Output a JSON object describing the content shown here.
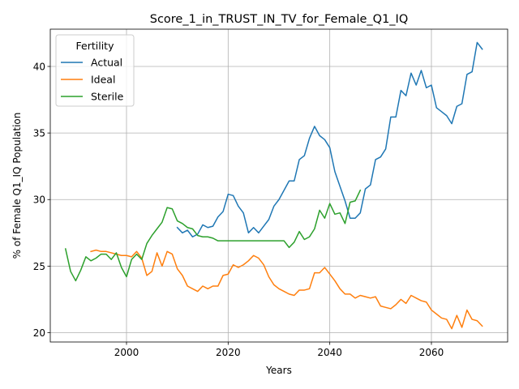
{
  "chart_data": {
    "type": "line",
    "title": "Score_1_in_TRUST_IN_TV_for_Female_Q1_IQ",
    "xlabel": "Years",
    "ylabel": "% of Female Q1_IQ Population",
    "xlim": [
      1985,
      2075
    ],
    "ylim": [
      19.3,
      42.8
    ],
    "xticks": [
      2000,
      2020,
      2040,
      2060
    ],
    "yticks": [
      20,
      25,
      30,
      35,
      40
    ],
    "grid": true,
    "legend": {
      "title": "Fertility",
      "placement": "top-left"
    },
    "series": [
      {
        "name": "Actual",
        "color": "#1f77b4",
        "x": [
          2010,
          2011,
          2012,
          2013,
          2014,
          2015,
          2016,
          2017,
          2018,
          2019,
          2020,
          2021,
          2022,
          2023,
          2024,
          2025,
          2026,
          2027,
          2028,
          2029,
          2030,
          2031,
          2032,
          2033,
          2034,
          2035,
          2036,
          2037,
          2038,
          2039,
          2040,
          2041,
          2042,
          2043,
          2044,
          2045,
          2046,
          2047,
          2048,
          2049,
          2050,
          2051,
          2052,
          2053,
          2054,
          2055,
          2056,
          2057,
          2058,
          2059,
          2060,
          2061,
          2062,
          2063,
          2064,
          2065,
          2066,
          2067,
          2068,
          2069,
          2070
        ],
        "y": [
          27.9,
          27.5,
          27.7,
          27.2,
          27.4,
          28.1,
          27.9,
          28.0,
          28.7,
          29.1,
          30.4,
          30.3,
          29.5,
          29.0,
          27.5,
          27.9,
          27.5,
          28.0,
          28.5,
          29.5,
          30.0,
          30.7,
          31.4,
          31.4,
          33.0,
          33.3,
          34.6,
          35.5,
          34.8,
          34.5,
          33.9,
          32.1,
          31.0,
          29.9,
          28.6,
          28.6,
          29.0,
          30.8,
          31.1,
          33.0,
          33.2,
          33.8,
          36.2,
          36.2,
          38.2,
          37.8,
          39.5,
          38.6,
          39.7,
          38.4,
          38.6,
          36.9,
          36.6,
          36.3,
          35.7,
          37.0,
          37.2,
          39.4,
          39.6,
          41.8,
          41.3
        ]
      },
      {
        "name": "Ideal",
        "color": "#ff7f0e",
        "x": [
          1993,
          1994,
          1995,
          1996,
          1997,
          1998,
          1999,
          2000,
          2001,
          2002,
          2003,
          2004,
          2005,
          2006,
          2007,
          2008,
          2009,
          2010,
          2011,
          2012,
          2013,
          2014,
          2015,
          2016,
          2017,
          2018,
          2019,
          2020,
          2021,
          2022,
          2023,
          2024,
          2025,
          2026,
          2027,
          2028,
          2029,
          2030,
          2031,
          2032,
          2033,
          2034,
          2035,
          2036,
          2037,
          2038,
          2039,
          2040,
          2041,
          2042,
          2043,
          2044,
          2045,
          2046,
          2047,
          2048,
          2049,
          2050,
          2051,
          2052,
          2053,
          2054,
          2055,
          2056,
          2057,
          2058,
          2059,
          2060,
          2061,
          2062,
          2063,
          2064,
          2065,
          2066,
          2067,
          2068,
          2069,
          2070
        ],
        "y": [
          26.1,
          26.2,
          26.1,
          26.1,
          26.0,
          25.9,
          25.8,
          25.8,
          25.7,
          26.1,
          25.6,
          24.3,
          24.6,
          26.0,
          25.0,
          26.1,
          25.9,
          24.8,
          24.3,
          23.5,
          23.3,
          23.1,
          23.5,
          23.3,
          23.5,
          23.5,
          24.3,
          24.4,
          25.1,
          24.9,
          25.1,
          25.4,
          25.8,
          25.6,
          25.1,
          24.2,
          23.6,
          23.3,
          23.1,
          22.9,
          22.8,
          23.2,
          23.2,
          23.3,
          24.5,
          24.5,
          24.9,
          24.4,
          23.9,
          23.3,
          22.9,
          22.9,
          22.6,
          22.8,
          22.7,
          22.6,
          22.7,
          22.0,
          21.9,
          21.8,
          22.1,
          22.5,
          22.2,
          22.8,
          22.6,
          22.4,
          22.3,
          21.7,
          21.4,
          21.1,
          21.0,
          20.3,
          21.3,
          20.4,
          21.7,
          21.0,
          20.9,
          20.5
        ]
      },
      {
        "name": "Sterile",
        "color": "#2ca02c",
        "x": [
          1988,
          1989,
          1990,
          1991,
          1992,
          1993,
          1994,
          1995,
          1996,
          1997,
          1998,
          1999,
          2000,
          2001,
          2002,
          2003,
          2004,
          2005,
          2006,
          2007,
          2008,
          2009,
          2010,
          2011,
          2012,
          2013,
          2014,
          2015,
          2016,
          2017,
          2018,
          2019,
          2020,
          2021,
          2022,
          2023,
          2024,
          2025,
          2026,
          2027,
          2028,
          2029,
          2030,
          2031,
          2032,
          2033,
          2034,
          2035,
          2036,
          2037,
          2038,
          2039,
          2040,
          2041,
          2042,
          2043,
          2044,
          2045,
          2046
        ],
        "y": [
          26.3,
          24.6,
          23.9,
          24.7,
          25.7,
          25.4,
          25.6,
          25.9,
          25.9,
          25.5,
          26.0,
          24.9,
          24.2,
          25.5,
          25.9,
          25.5,
          26.7,
          27.3,
          27.8,
          28.3,
          29.4,
          29.3,
          28.4,
          28.2,
          27.9,
          27.8,
          27.3,
          27.2,
          27.2,
          27.1,
          26.9,
          26.9,
          26.9,
          26.9,
          26.9,
          26.9,
          26.9,
          26.9,
          26.9,
          26.9,
          26.9,
          26.9,
          26.9,
          26.9,
          26.4,
          26.8,
          27.6,
          27.0,
          27.2,
          27.8,
          29.2,
          28.6,
          29.7,
          28.9,
          29.0,
          28.2,
          29.8,
          29.9,
          30.7
        ]
      }
    ]
  }
}
